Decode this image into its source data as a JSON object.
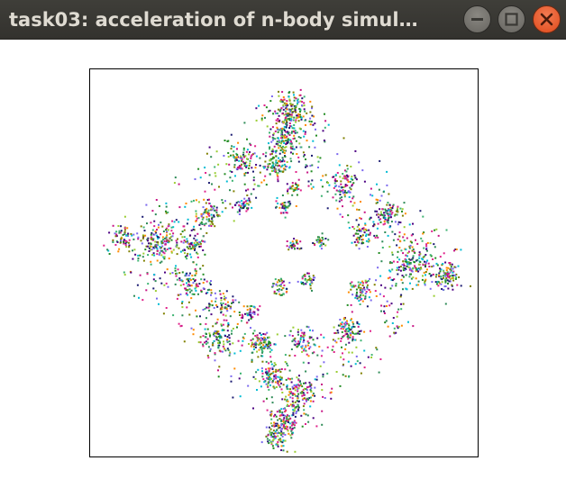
{
  "window": {
    "title": "task03: acceleration of n-body simul…",
    "minimize_icon": "minimize-icon",
    "maximize_icon": "maximize-icon",
    "close_icon": "close-icon",
    "close_color": "#e95420"
  },
  "simulation": {
    "background_color": "#ffffff",
    "border_color": "#000000",
    "particle_colors": [
      "#e0218a",
      "#2e8b57",
      "#7b68ee",
      "#228b22",
      "#00bcd4",
      "#9acd32",
      "#ff8c00",
      "#4b0082",
      "#808000",
      "#191970",
      "#c71585",
      "#3cb371"
    ]
  }
}
